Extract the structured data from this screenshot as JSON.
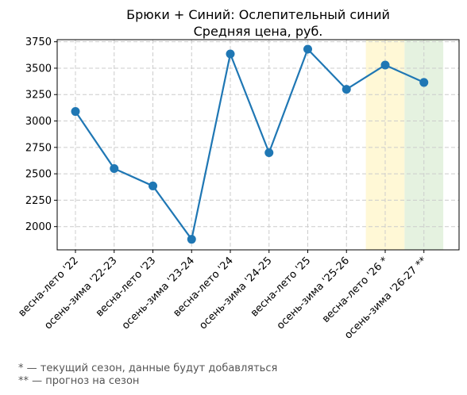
{
  "chart_data": {
    "type": "line",
    "title": "Брюки + Синий: Ослепительный синий",
    "subtitle": "Средняя цена, руб.",
    "categories": [
      "весна-лето '22",
      "осень-зима '22-23",
      "весна-лето '23",
      "осень-зима '23-24",
      "весна-лето '24",
      "осень-зима '24-25",
      "весна-лето '25",
      "осень-зима '25-26",
      "весна-лето '26 *",
      "осень-зима '26-27 **"
    ],
    "series": [
      {
        "values": [
          3090,
          2550,
          2385,
          1880,
          3635,
          2700,
          3680,
          3300,
          3530,
          3365
        ]
      }
    ],
    "ylim": [
      1780,
      3770
    ],
    "yticks": [
      2000,
      2250,
      2500,
      2750,
      3000,
      3250,
      3500,
      3750
    ],
    "grid": true,
    "highlight_bands": [
      {
        "category": "весна-лето '26 *",
        "color": "#fff8d6"
      },
      {
        "category": "осень-зима '26-27 **",
        "color": "#e5f2e0"
      }
    ],
    "line_color": "#1f77b4"
  },
  "footnotes": {
    "current": "* — текущий сезон, данные будут добавляться",
    "forecast": "** — прогноз на сезон"
  }
}
